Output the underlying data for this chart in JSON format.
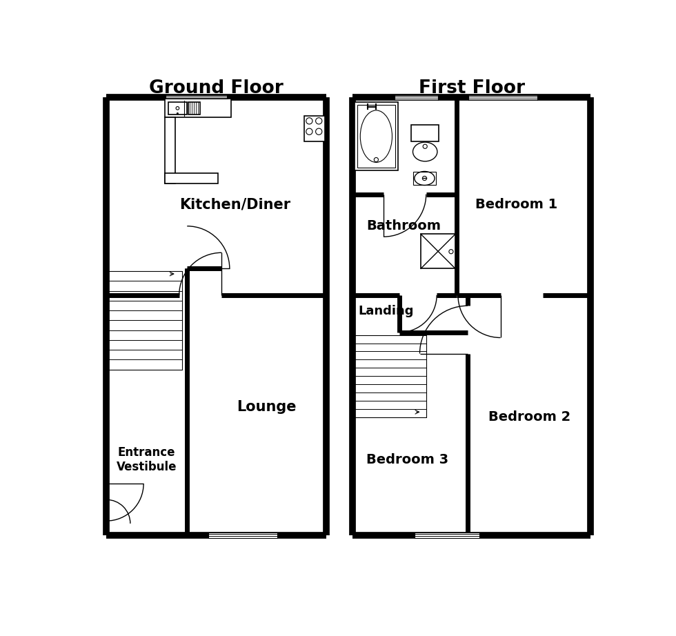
{
  "title_ground": "Ground Floor",
  "title_first": "First Floor",
  "bg_color": "#ffffff",
  "lw_outer": 7,
  "lw_inner": 5,
  "lw_fixture": 1.2,
  "lw_thin": 1.0,
  "ground_floor": {
    "outer": [
      38,
      58,
      452,
      882
    ],
    "kitchen_label": [
      "Kitchen/Diner",
      245,
      620
    ],
    "lounge_label": [
      "Lounge",
      320,
      300
    ],
    "vestibule_label": [
      "Entrance\nVestibule",
      118,
      175
    ]
  },
  "first_floor": {
    "outer": [
      502,
      58,
      950,
      882
    ],
    "bathroom_label": [
      "Bathroom",
      598,
      630
    ],
    "bedroom1_label": [
      "Bedroom 1",
      790,
      620
    ],
    "landing_label": [
      "Landing",
      575,
      490
    ],
    "bedroom2_label": [
      "Bedroom 2",
      815,
      280
    ],
    "bedroom3_label": [
      "Bedroom 3",
      620,
      200
    ]
  }
}
